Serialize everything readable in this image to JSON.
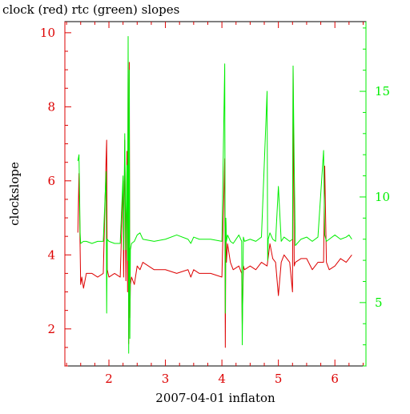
{
  "chart_data": {
    "type": "line",
    "title": "clock (red) rtc (green) slopes",
    "xlabel": "2007-04-01 inflaton",
    "ylabel_left": "clockslope",
    "xlim": [
      1.22,
      6.55
    ],
    "ylim_left": [
      1.0,
      10.3
    ],
    "ylim_right": [
      2.0,
      18.3
    ],
    "x_ticks": [
      2,
      3,
      4,
      5,
      6
    ],
    "x_tick_labels": [
      "2",
      "3",
      "4",
      "5",
      "6"
    ],
    "y_left_ticks": [
      2,
      4,
      6,
      8,
      10
    ],
    "y_left_tick_labels": [
      "2",
      "4",
      "6",
      "8",
      "10"
    ],
    "y_right_ticks": [
      5,
      10,
      15
    ],
    "y_right_tick_labels": [
      "5",
      "10",
      "15"
    ],
    "colors": {
      "clock": "#dd0000",
      "rtc": "#00ee00",
      "x_ticks": "#dd0000",
      "left_axis": "#dd0000",
      "right_axis": "#00ee00",
      "frame": "#000000"
    },
    "series": [
      {
        "name": "clock",
        "color": "#dd0000",
        "axis": "left",
        "x": [
          1.45,
          1.47,
          1.49,
          1.5,
          1.52,
          1.55,
          1.6,
          1.7,
          1.8,
          1.9,
          1.95,
          1.96,
          1.97,
          2.0,
          2.1,
          2.2,
          2.25,
          2.26,
          2.28,
          2.3,
          2.32,
          2.33,
          2.34,
          2.35,
          2.36,
          2.37,
          2.38,
          2.4,
          2.45,
          2.5,
          2.55,
          2.6,
          2.8,
          3.0,
          3.2,
          3.4,
          3.45,
          3.5,
          3.6,
          3.8,
          4.0,
          4.05,
          4.06,
          4.07,
          4.08,
          4.1,
          4.15,
          4.2,
          4.3,
          4.35,
          4.36,
          4.38,
          4.4,
          4.5,
          4.6,
          4.7,
          4.8,
          4.85,
          4.9,
          4.95,
          5.0,
          5.05,
          5.1,
          5.2,
          5.25,
          5.26,
          5.28,
          5.3,
          5.4,
          5.5,
          5.6,
          5.7,
          5.8,
          5.82,
          5.85,
          5.9,
          6.0,
          6.1,
          6.2,
          6.25,
          6.3
        ],
        "y": [
          4.6,
          6.2,
          4.2,
          3.2,
          3.4,
          3.1,
          3.5,
          3.5,
          3.4,
          3.5,
          6.6,
          7.1,
          3.6,
          3.4,
          3.5,
          3.4,
          6.0,
          3.4,
          7.1,
          3.3,
          6.8,
          3.0,
          9.1,
          1.6,
          9.2,
          2.3,
          3.2,
          3.4,
          3.2,
          3.7,
          3.6,
          3.8,
          3.6,
          3.6,
          3.5,
          3.6,
          3.4,
          3.6,
          3.5,
          3.5,
          3.4,
          6.6,
          1.5,
          4.9,
          3.8,
          4.3,
          3.8,
          3.6,
          3.7,
          3.5,
          2.1,
          3.7,
          3.6,
          3.7,
          3.6,
          3.8,
          3.7,
          4.3,
          3.9,
          3.8,
          2.9,
          3.8,
          4.0,
          3.8,
          3.0,
          9.1,
          3.7,
          3.8,
          3.9,
          3.9,
          3.6,
          3.8,
          3.8,
          6.4,
          3.8,
          3.6,
          3.7,
          3.9,
          3.8,
          3.9,
          4.0
        ]
      },
      {
        "name": "rtc",
        "color": "#00ee00",
        "axis": "right",
        "x": [
          1.45,
          1.47,
          1.49,
          1.5,
          1.55,
          1.6,
          1.7,
          1.8,
          1.9,
          1.95,
          1.96,
          1.97,
          2.0,
          2.1,
          2.2,
          2.25,
          2.26,
          2.28,
          2.3,
          2.32,
          2.33,
          2.34,
          2.35,
          2.36,
          2.37,
          2.38,
          2.4,
          2.45,
          2.5,
          2.55,
          2.6,
          2.8,
          3.0,
          3.2,
          3.4,
          3.45,
          3.5,
          3.6,
          3.8,
          4.0,
          4.05,
          4.06,
          4.07,
          4.08,
          4.1,
          4.15,
          4.2,
          4.3,
          4.35,
          4.36,
          4.38,
          4.4,
          4.5,
          4.6,
          4.7,
          4.8,
          4.81,
          4.82,
          4.85,
          4.9,
          4.95,
          5.0,
          5.05,
          5.1,
          5.2,
          5.25,
          5.26,
          5.28,
          5.3,
          5.4,
          5.5,
          5.6,
          5.7,
          5.8,
          5.82,
          5.85,
          5.9,
          6.0,
          6.1,
          6.2,
          6.25,
          6.3
        ],
        "y": [
          11.7,
          12.0,
          8.3,
          7.8,
          7.9,
          7.9,
          7.8,
          7.9,
          7.9,
          11.2,
          4.5,
          8.0,
          7.9,
          7.8,
          7.8,
          11.0,
          7.5,
          13.0,
          7.5,
          11.5,
          7.0,
          17.6,
          2.6,
          16.0,
          3.3,
          7.5,
          7.8,
          7.9,
          8.2,
          8.3,
          8.0,
          7.9,
          8.0,
          8.2,
          8.0,
          7.8,
          8.1,
          8.0,
          8.0,
          7.9,
          16.3,
          4.5,
          9.0,
          7.9,
          8.2,
          7.9,
          7.8,
          8.2,
          7.9,
          3.0,
          8.1,
          7.9,
          8.0,
          7.9,
          8.1,
          15.0,
          7.0,
          8.0,
          8.3,
          8.0,
          7.9,
          10.5,
          7.9,
          8.1,
          7.9,
          8.0,
          16.2,
          11.5,
          7.7,
          8.0,
          8.1,
          7.9,
          8.1,
          12.2,
          8.2,
          7.9,
          8.0,
          8.2,
          8.0,
          8.1,
          8.2,
          8.0
        ]
      }
    ]
  }
}
